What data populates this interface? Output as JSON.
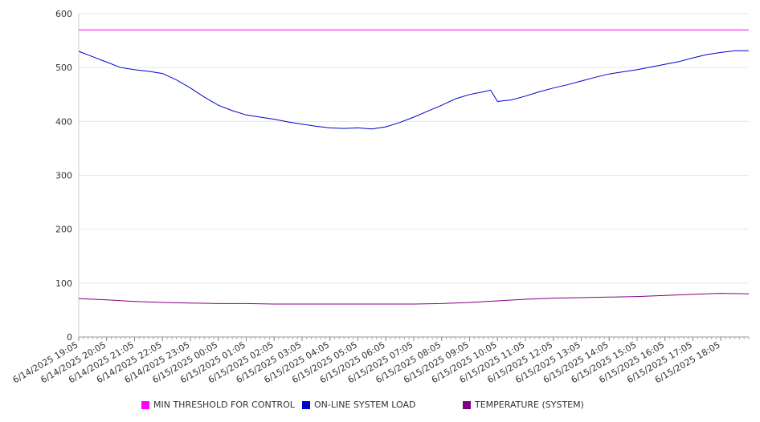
{
  "chart_data": {
    "type": "line",
    "ylim": [
      0,
      600
    ],
    "yticks": [
      0,
      100,
      200,
      300,
      400,
      500,
      600
    ],
    "x_tick_labels": [
      "6/14/2025 19:05",
      "6/14/2025 20:05",
      "6/14/2025 21:05",
      "6/14/2025 22:05",
      "6/14/2025 23:05",
      "6/15/2025 00:05",
      "6/15/2025 01:05",
      "6/15/2025 02:05",
      "6/15/2025 03:05",
      "6/15/2025 04:05",
      "6/15/2025 05:05",
      "6/15/2025 06:05",
      "6/15/2025 07:05",
      "6/15/2025 08:05",
      "6/15/2025 09:05",
      "6/15/2025 10:05",
      "6/15/2025 11:05",
      "6/15/2025 12:05",
      "6/15/2025 13:05",
      "6/15/2025 14:05",
      "6/15/2025 15:05",
      "6/15/2025 16:05",
      "6/15/2025 17:05",
      "6/15/2025 18:05"
    ],
    "x_range_minutes_note_hidden": null,
    "series": [
      {
        "name": "MIN THRESHOLD FOR CONTROL",
        "color": "#ff00ff",
        "points": [
          [
            "6/14/2025 19:05",
            570
          ],
          [
            "6/15/2025 19:05",
            570
          ]
        ]
      },
      {
        "name": "ON-LINE SYSTEM LOAD",
        "color": "#0000cc",
        "points": [
          [
            "6/14/2025 19:05",
            530
          ],
          [
            "6/14/2025 19:35",
            520
          ],
          [
            "6/14/2025 20:05",
            510
          ],
          [
            "6/14/2025 20:35",
            500
          ],
          [
            "6/14/2025 21:05",
            496
          ],
          [
            "6/14/2025 21:35",
            493
          ],
          [
            "6/14/2025 22:05",
            489
          ],
          [
            "6/14/2025 22:35",
            477
          ],
          [
            "6/14/2025 23:05",
            462
          ],
          [
            "6/14/2025 23:35",
            445
          ],
          [
            "6/15/2025 00:05",
            430
          ],
          [
            "6/15/2025 00:35",
            420
          ],
          [
            "6/15/2025 01:05",
            412
          ],
          [
            "6/15/2025 01:35",
            408
          ],
          [
            "6/15/2025 02:05",
            404
          ],
          [
            "6/15/2025 02:35",
            399
          ],
          [
            "6/15/2025 03:05",
            395
          ],
          [
            "6/15/2025 03:35",
            391
          ],
          [
            "6/15/2025 04:05",
            388
          ],
          [
            "6/15/2025 04:35",
            387
          ],
          [
            "6/15/2025 05:05",
            388
          ],
          [
            "6/15/2025 05:35",
            386
          ],
          [
            "6/15/2025 06:05",
            390
          ],
          [
            "6/15/2025 06:35",
            398
          ],
          [
            "6/15/2025 07:05",
            408
          ],
          [
            "6/15/2025 07:35",
            419
          ],
          [
            "6/15/2025 08:05",
            430
          ],
          [
            "6/15/2025 08:35",
            442
          ],
          [
            "6/15/2025 09:05",
            450
          ],
          [
            "6/15/2025 09:35",
            455
          ],
          [
            "6/15/2025 09:50",
            458
          ],
          [
            "6/15/2025 10:05",
            437
          ],
          [
            "6/15/2025 10:35",
            440
          ],
          [
            "6/15/2025 11:05",
            447
          ],
          [
            "6/15/2025 11:35",
            455
          ],
          [
            "6/15/2025 12:05",
            462
          ],
          [
            "6/15/2025 12:35",
            468
          ],
          [
            "6/15/2025 13:05",
            475
          ],
          [
            "6/15/2025 13:35",
            482
          ],
          [
            "6/15/2025 14:05",
            488
          ],
          [
            "6/15/2025 14:35",
            492
          ],
          [
            "6/15/2025 15:05",
            496
          ],
          [
            "6/15/2025 15:35",
            501
          ],
          [
            "6/15/2025 16:05",
            506
          ],
          [
            "6/15/2025 16:35",
            511
          ],
          [
            "6/15/2025 17:05",
            518
          ],
          [
            "6/15/2025 17:35",
            524
          ],
          [
            "6/15/2025 18:05",
            528
          ],
          [
            "6/15/2025 18:35",
            531
          ],
          [
            "6/15/2025 19:05",
            531
          ]
        ]
      },
      {
        "name": "TEMPERATURE (SYSTEM)",
        "color": "#800080",
        "points": [
          [
            "6/14/2025 19:05",
            71
          ],
          [
            "6/14/2025 20:05",
            69
          ],
          [
            "6/14/2025 21:05",
            66
          ],
          [
            "6/14/2025 22:05",
            64
          ],
          [
            "6/14/2025 23:05",
            63
          ],
          [
            "6/15/2025 00:05",
            62
          ],
          [
            "6/15/2025 01:05",
            62
          ],
          [
            "6/15/2025 02:05",
            61
          ],
          [
            "6/15/2025 03:05",
            61
          ],
          [
            "6/15/2025 04:05",
            61
          ],
          [
            "6/15/2025 05:05",
            61
          ],
          [
            "6/15/2025 06:05",
            61
          ],
          [
            "6/15/2025 07:05",
            61
          ],
          [
            "6/15/2025 08:05",
            62
          ],
          [
            "6/15/2025 09:05",
            64
          ],
          [
            "6/15/2025 10:05",
            67
          ],
          [
            "6/15/2025 11:05",
            70
          ],
          [
            "6/15/2025 12:05",
            72
          ],
          [
            "6/15/2025 13:05",
            73
          ],
          [
            "6/15/2025 14:05",
            74
          ],
          [
            "6/15/2025 15:05",
            75
          ],
          [
            "6/15/2025 16:05",
            77
          ],
          [
            "6/15/2025 17:05",
            79
          ],
          [
            "6/15/2025 18:05",
            81
          ],
          [
            "6/15/2025 19:05",
            80
          ]
        ]
      }
    ],
    "grid": true,
    "legend_position": "bottom"
  }
}
